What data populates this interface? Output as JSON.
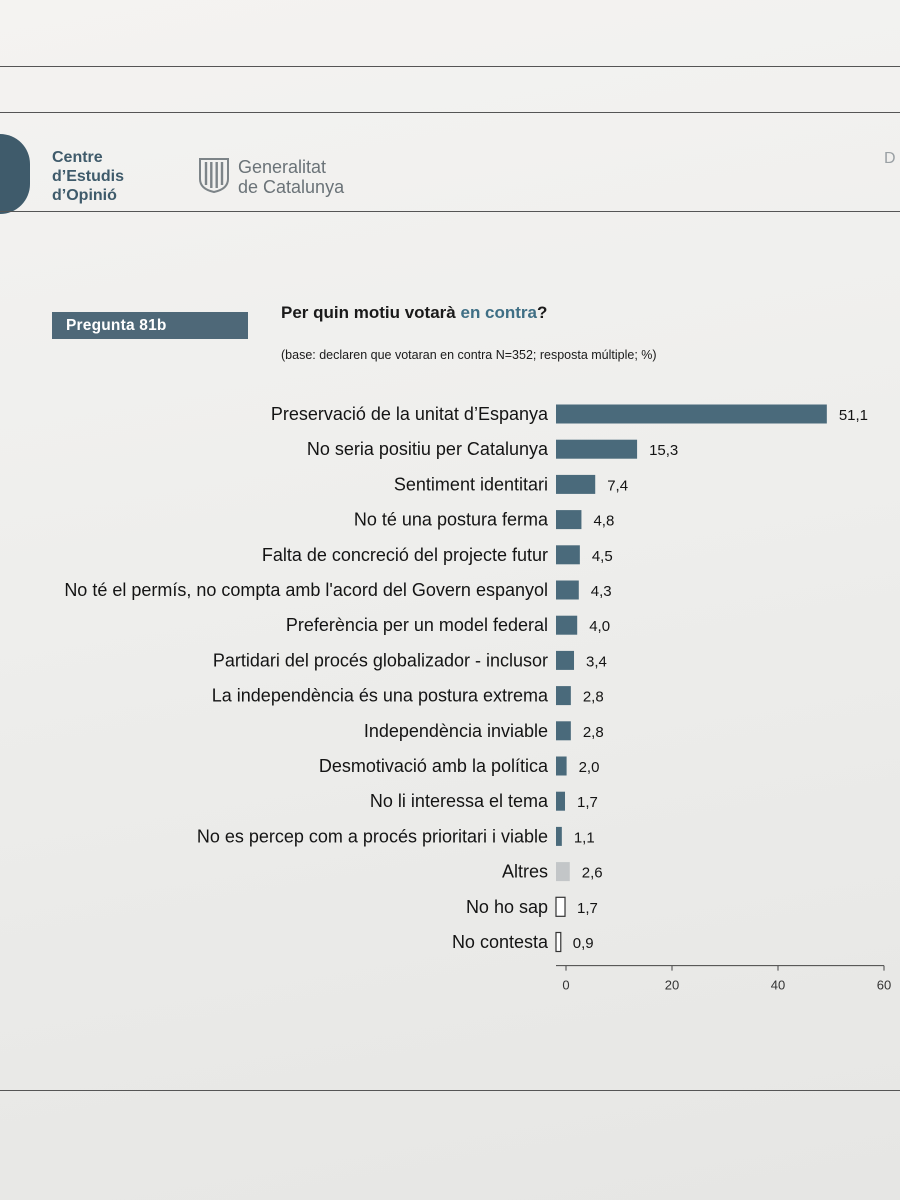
{
  "header": {
    "institute_lines": [
      "Centre",
      "d’Estudis",
      "d’Opinió"
    ],
    "government_lines": [
      "Generalitat",
      "de Catalunya"
    ],
    "edge_letter": "D"
  },
  "question": {
    "badge": "Pregunta 81b",
    "title_before": "Per quin motiu votarà ",
    "title_highlight": "en contra",
    "title_after": "?",
    "base": "(base: declaren que votaran en contra N=352; resposta múltiple; %)"
  },
  "colors": {
    "bar_main": "#4a6a7b",
    "bar_other": "#c3c6c8",
    "bar_unknown": "#ffffff",
    "accent": "#3f6f85"
  },
  "chart_data": {
    "type": "bar",
    "orientation": "horizontal",
    "categories": [
      "Preservació de la unitat d’Espanya",
      "No seria positiu per Catalunya",
      "Sentiment identitari",
      "No té una postura ferma",
      "Falta de concreció del projecte futur",
      "No té el permís, no compta amb l'acord del Govern espanyol",
      "Preferència per un model federal",
      "Partidari del procés globalizador - inclusor",
      "La independència és una postura extrema",
      "Independència inviable",
      "Desmotivació amb la política",
      "No li interessa el tema",
      "No es percep com a procés prioritari i viable",
      "Altres",
      "No ho sap",
      "No contesta"
    ],
    "values": [
      51.1,
      15.3,
      7.4,
      4.8,
      4.5,
      4.3,
      4.0,
      3.4,
      2.8,
      2.8,
      2.0,
      1.7,
      1.1,
      2.6,
      1.7,
      0.9
    ],
    "value_labels": [
      "51,1",
      "15,3",
      "7,4",
      "4,8",
      "4,5",
      "4,3",
      "4,0",
      "3,4",
      "2,8",
      "2,8",
      "2,0",
      "1,7",
      "1,1",
      "2,6",
      "1,7",
      "0,9"
    ],
    "bar_styles": [
      "main",
      "main",
      "main",
      "main",
      "main",
      "main",
      "main",
      "main",
      "main",
      "main",
      "main",
      "main",
      "main",
      "other",
      "unknown",
      "unknown"
    ],
    "xlim": [
      0,
      60
    ],
    "xticks": [
      0,
      20,
      40,
      60
    ],
    "xtick_labels": [
      "0",
      "20",
      "40",
      "60"
    ],
    "grid": false
  }
}
